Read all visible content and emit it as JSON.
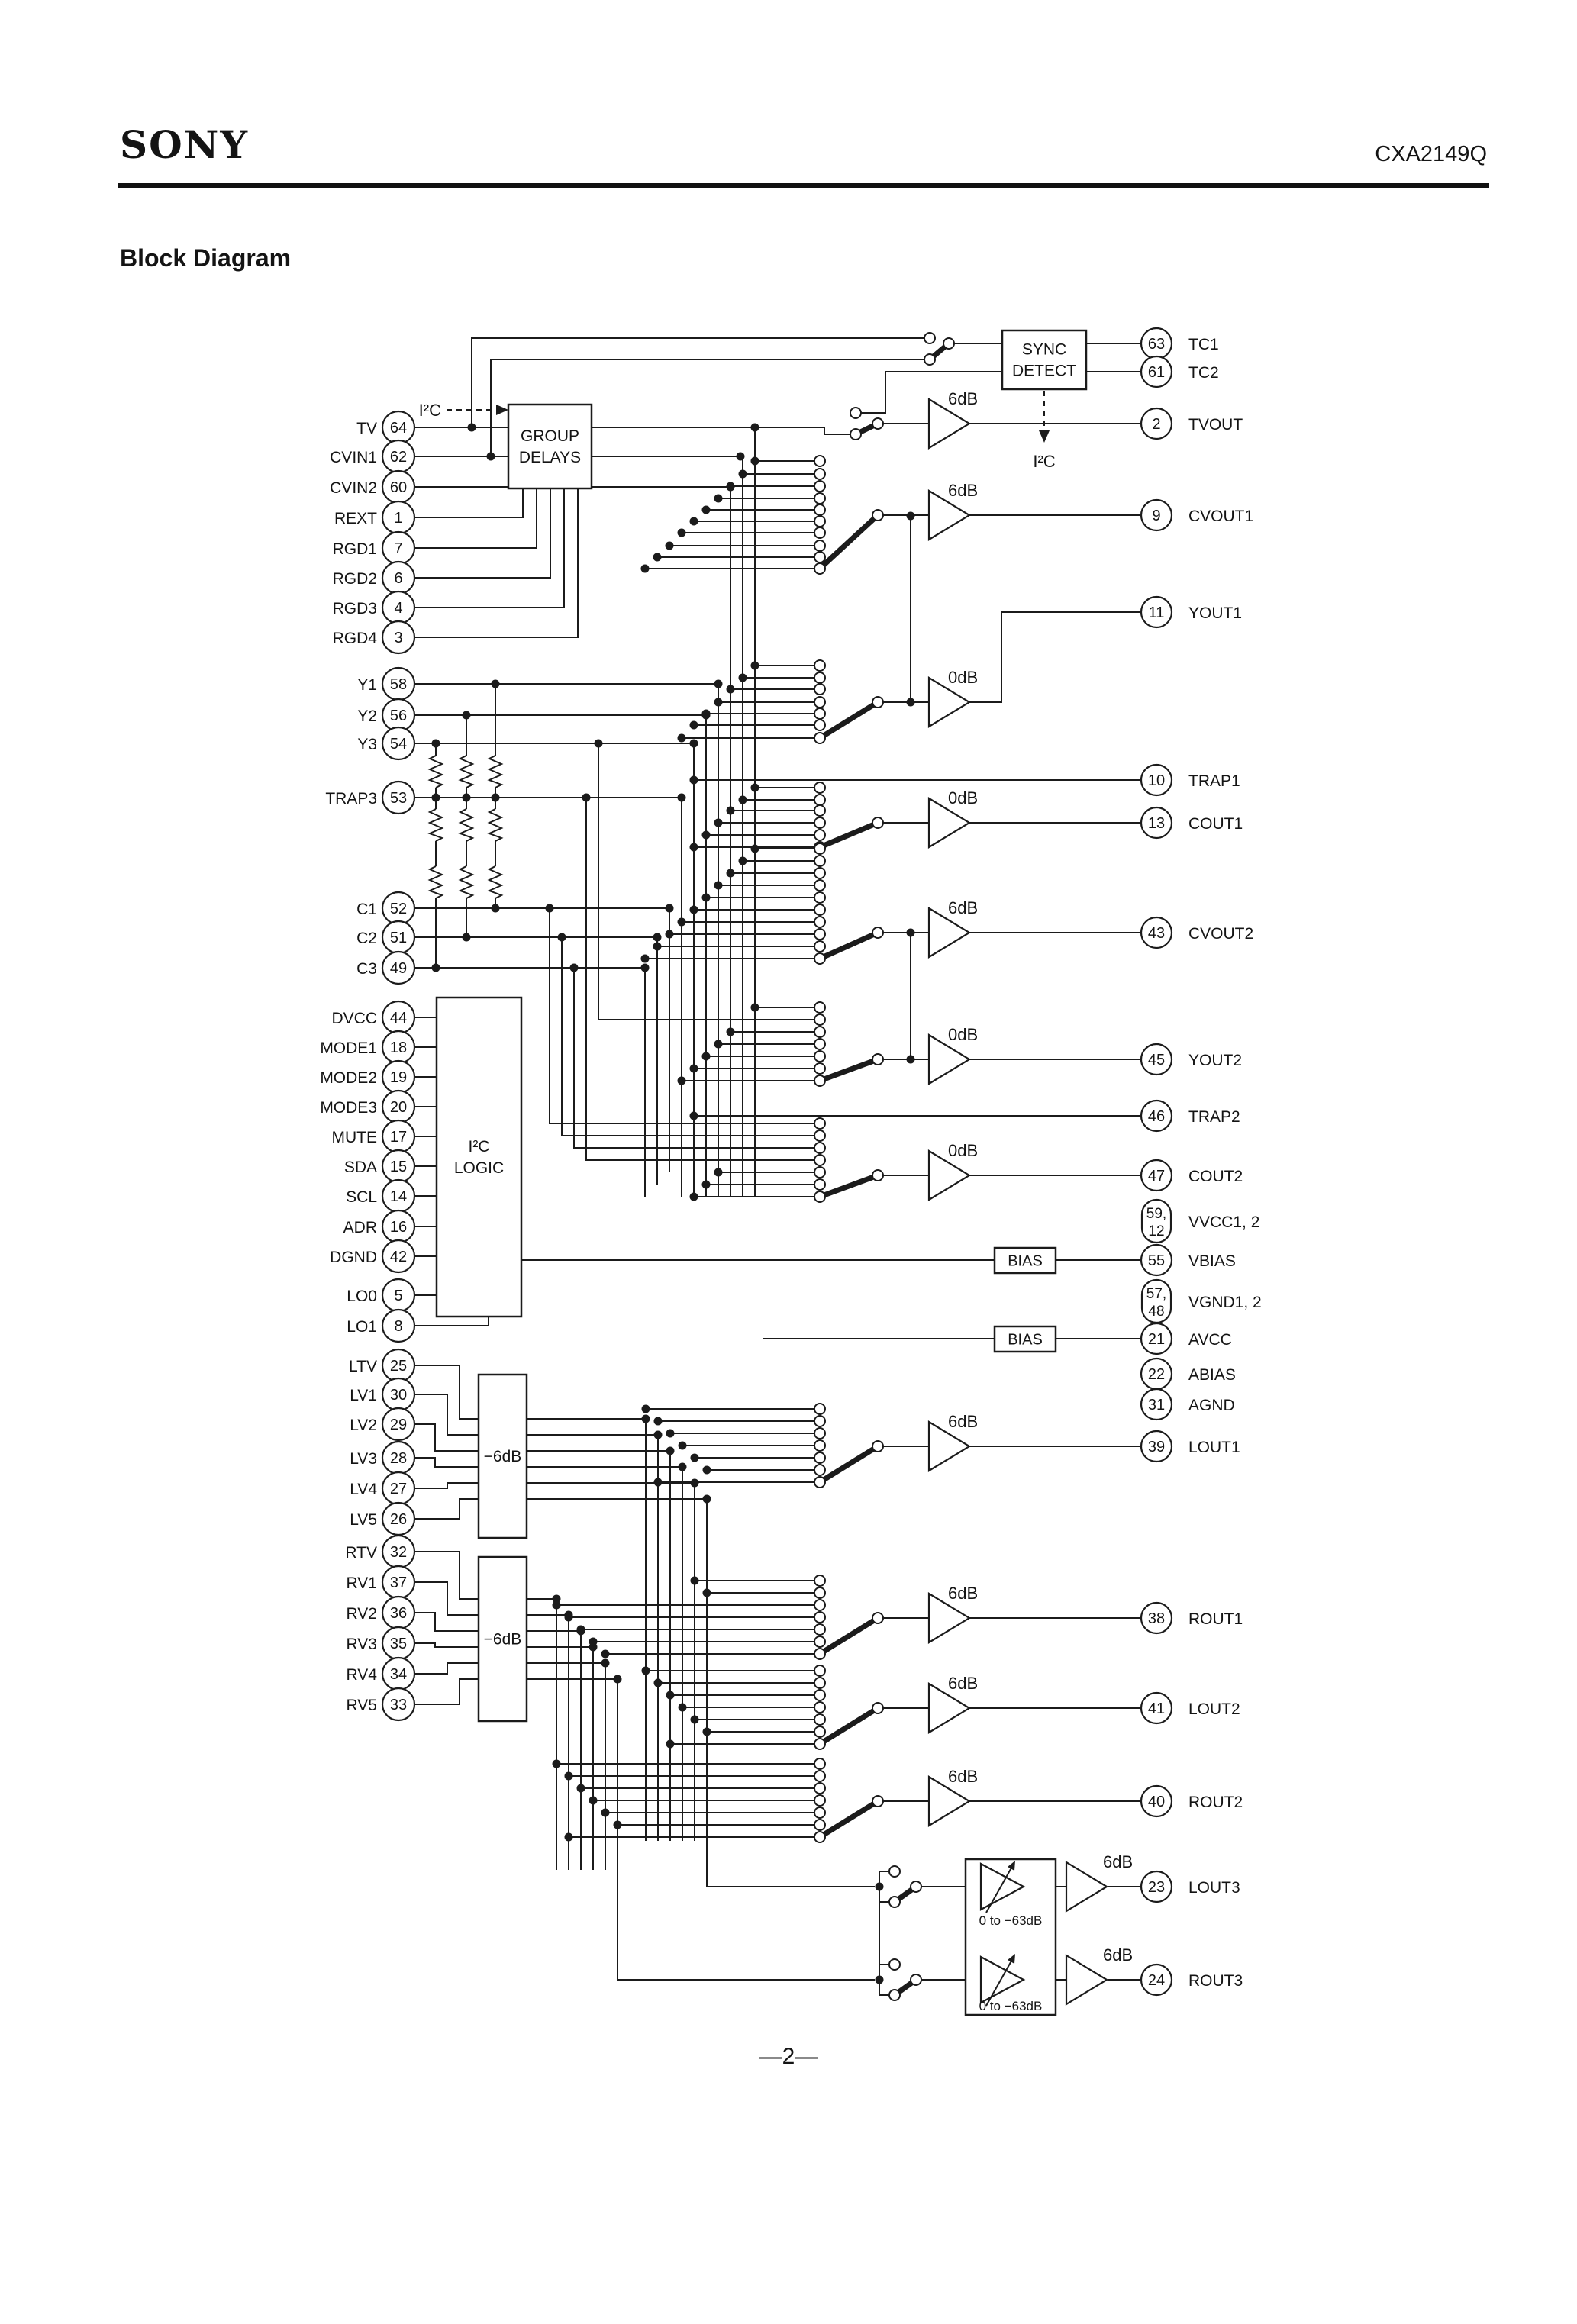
{
  "header": {
    "brand": "SONY",
    "part_number": "CXA2149Q"
  },
  "title": "Block Diagram",
  "page_number": "—2—",
  "blocks": {
    "sync_detect": [
      "SYNC",
      "DETECT"
    ],
    "group_delays": [
      "GROUP",
      "DELAYS"
    ],
    "i2c_logic": [
      "I²C",
      "LOGIC"
    ],
    "bias": "BIAS",
    "attenuator": "−6dB",
    "var_amp_range": "0 to −63dB"
  },
  "labels": {
    "i2c_group": "I²C",
    "i2c_sync": "I²C"
  },
  "pins": {
    "left": [
      {
        "label": "TV",
        "num": "64"
      },
      {
        "label": "CVIN1",
        "num": "62"
      },
      {
        "label": "CVIN2",
        "num": "60"
      },
      {
        "label": "REXT",
        "num": "1"
      },
      {
        "label": "RGD1",
        "num": "7"
      },
      {
        "label": "RGD2",
        "num": "6"
      },
      {
        "label": "RGD3",
        "num": "4"
      },
      {
        "label": "RGD4",
        "num": "3"
      },
      {
        "label": "Y1",
        "num": "58"
      },
      {
        "label": "Y2",
        "num": "56"
      },
      {
        "label": "Y3",
        "num": "54"
      },
      {
        "label": "TRAP3",
        "num": "53"
      },
      {
        "label": "C1",
        "num": "52"
      },
      {
        "label": "C2",
        "num": "51"
      },
      {
        "label": "C3",
        "num": "49"
      },
      {
        "label": "DVCC",
        "num": "44"
      },
      {
        "label": "MODE1",
        "num": "18"
      },
      {
        "label": "MODE2",
        "num": "19"
      },
      {
        "label": "MODE3",
        "num": "20"
      },
      {
        "label": "MUTE",
        "num": "17"
      },
      {
        "label": "SDA",
        "num": "15"
      },
      {
        "label": "SCL",
        "num": "14"
      },
      {
        "label": "ADR",
        "num": "16"
      },
      {
        "label": "DGND",
        "num": "42"
      },
      {
        "label": "LO0",
        "num": "5"
      },
      {
        "label": "LO1",
        "num": "8"
      },
      {
        "label": "LTV",
        "num": "25"
      },
      {
        "label": "LV1",
        "num": "30"
      },
      {
        "label": "LV2",
        "num": "29"
      },
      {
        "label": "LV3",
        "num": "28"
      },
      {
        "label": "LV4",
        "num": "27"
      },
      {
        "label": "LV5",
        "num": "26"
      },
      {
        "label": "RTV",
        "num": "32"
      },
      {
        "label": "RV1",
        "num": "37"
      },
      {
        "label": "RV2",
        "num": "36"
      },
      {
        "label": "RV3",
        "num": "35"
      },
      {
        "label": "RV4",
        "num": "34"
      },
      {
        "label": "RV5",
        "num": "33"
      }
    ],
    "right": [
      {
        "label": "TC1",
        "num": "63"
      },
      {
        "label": "TC2",
        "num": "61"
      },
      {
        "label": "TVOUT",
        "num": "2"
      },
      {
        "label": "CVOUT1",
        "num": "9"
      },
      {
        "label": "YOUT1",
        "num": "11"
      },
      {
        "label": "TRAP1",
        "num": "10"
      },
      {
        "label": "COUT1",
        "num": "13"
      },
      {
        "label": "CVOUT2",
        "num": "43"
      },
      {
        "label": "YOUT2",
        "num": "45"
      },
      {
        "label": "TRAP2",
        "num": "46"
      },
      {
        "label": "COUT2",
        "num": "47"
      },
      {
        "label": "VVCC1, 2",
        "nums": [
          "59,",
          "12"
        ]
      },
      {
        "label": "VBIAS",
        "num": "55"
      },
      {
        "label": "VGND1, 2",
        "nums": [
          "57,",
          "48"
        ]
      },
      {
        "label": "AVCC",
        "num": "21"
      },
      {
        "label": "ABIAS",
        "num": "22"
      },
      {
        "label": "AGND",
        "num": "31"
      },
      {
        "label": "LOUT1",
        "num": "39"
      },
      {
        "label": "ROUT1",
        "num": "38"
      },
      {
        "label": "LOUT2",
        "num": "41"
      },
      {
        "label": "ROUT2",
        "num": "40"
      },
      {
        "label": "LOUT3",
        "num": "23"
      },
      {
        "label": "ROUT3",
        "num": "24"
      }
    ]
  },
  "amps": [
    {
      "id": "tvout",
      "gain": "6dB"
    },
    {
      "id": "cvout1",
      "gain": "6dB"
    },
    {
      "id": "yout1",
      "gain": "0dB"
    },
    {
      "id": "cout1",
      "gain": "0dB"
    },
    {
      "id": "cvout2",
      "gain": "6dB"
    },
    {
      "id": "yout2",
      "gain": "0dB"
    },
    {
      "id": "cout2",
      "gain": "0dB"
    },
    {
      "id": "lout1",
      "gain": "6dB"
    },
    {
      "id": "rout1",
      "gain": "6dB"
    },
    {
      "id": "lout2",
      "gain": "6dB"
    },
    {
      "id": "rout2",
      "gain": "6dB"
    },
    {
      "id": "lout3",
      "gain": "6dB"
    },
    {
      "id": "rout3",
      "gain": "6dB"
    }
  ]
}
